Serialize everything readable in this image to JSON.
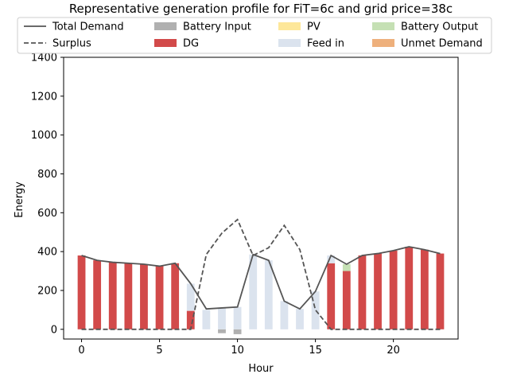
{
  "chart_data": {
    "type": "bar",
    "title": "Representative generation profile for FiT=6c and grid price=38c",
    "xlabel": "Hour",
    "ylabel": "Energy",
    "xlim": [
      -1.15,
      24.15
    ],
    "ylim": [
      -50,
      1400
    ],
    "xticks": [
      0,
      5,
      10,
      15,
      20
    ],
    "yticks": [
      0,
      200,
      400,
      600,
      800,
      1000,
      1200,
      1400
    ],
    "grid": false,
    "legend_position": "top-center",
    "x": [
      0,
      1,
      2,
      3,
      4,
      5,
      6,
      7,
      8,
      9,
      10,
      11,
      12,
      13,
      14,
      15,
      16,
      17,
      18,
      19,
      20,
      21,
      22,
      23
    ],
    "bar_series": [
      {
        "name": "Battery Input",
        "color": "#b0b0b0",
        "values": [
          0,
          0,
          0,
          0,
          0,
          0,
          0,
          0,
          0,
          -20,
          -25,
          0,
          0,
          0,
          0,
          0,
          0,
          0,
          0,
          0,
          0,
          0,
          0,
          0
        ]
      },
      {
        "name": "DG",
        "color": "#d24a4a",
        "values": [
          380,
          355,
          345,
          340,
          335,
          325,
          340,
          95,
          0,
          0,
          0,
          0,
          0,
          0,
          0,
          0,
          340,
          300,
          380,
          390,
          405,
          425,
          410,
          390
        ]
      },
      {
        "name": "PV",
        "color": "#fde79a",
        "values": [
          0,
          0,
          0,
          0,
          0,
          0,
          0,
          0,
          0,
          0,
          0,
          0,
          0,
          0,
          0,
          0,
          0,
          0,
          0,
          0,
          0,
          0,
          0,
          0
        ]
      },
      {
        "name": "Battery Output",
        "color": "#c5e0b4",
        "values": [
          0,
          0,
          0,
          0,
          0,
          0,
          0,
          0,
          0,
          0,
          0,
          0,
          0,
          0,
          0,
          0,
          0,
          35,
          0,
          0,
          0,
          0,
          0,
          0
        ]
      },
      {
        "name": "Feed in",
        "color": "#dbe3ee",
        "values": [
          0,
          0,
          0,
          0,
          0,
          0,
          0,
          140,
          100,
          110,
          115,
          385,
          355,
          145,
          105,
          195,
          40,
          0,
          0,
          0,
          0,
          0,
          0,
          0
        ]
      },
      {
        "name": "Unmet Demand",
        "color": "#eeb07c",
        "values": [
          0,
          0,
          0,
          0,
          0,
          0,
          0,
          0,
          0,
          0,
          0,
          0,
          0,
          0,
          0,
          0,
          0,
          0,
          0,
          0,
          0,
          0,
          0,
          0
        ]
      }
    ],
    "line_series": [
      {
        "name": "Total Demand",
        "color": "#555555",
        "style": "solid",
        "values": [
          380,
          355,
          345,
          340,
          335,
          325,
          340,
          235,
          105,
          110,
          115,
          385,
          355,
          145,
          105,
          195,
          380,
          335,
          380,
          390,
          405,
          425,
          410,
          390
        ]
      },
      {
        "name": "Surplus",
        "color": "#555555",
        "style": "dashed",
        "values": [
          0,
          0,
          0,
          0,
          0,
          0,
          0,
          0,
          385,
          495,
          565,
          380,
          420,
          535,
          410,
          100,
          0,
          0,
          0,
          0,
          0,
          0,
          0,
          0
        ]
      }
    ],
    "legend_order": [
      "Total Demand",
      "Battery Input",
      "PV",
      "Battery Output",
      "Surplus",
      "DG",
      "Feed in",
      "Unmet Demand"
    ]
  }
}
